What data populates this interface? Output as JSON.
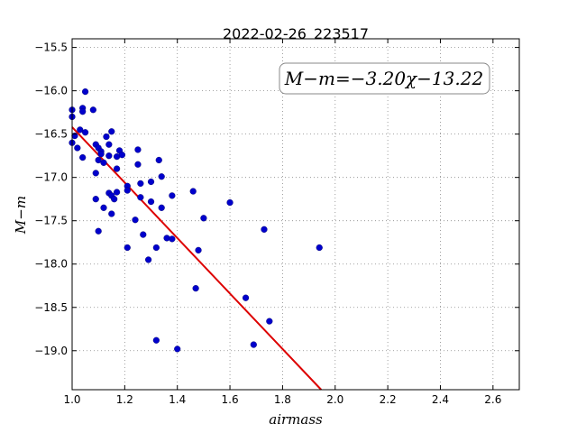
{
  "chart_data": {
    "type": "scatter",
    "title": "2022-02-26_223517",
    "xlabel": "airmass",
    "ylabel": "M−m",
    "xlim": [
      1.0,
      2.7
    ],
    "ylim": [
      -19.45,
      -15.4
    ],
    "x_ticks": [
      1.0,
      1.2,
      1.4,
      1.6,
      1.8,
      2.0,
      2.2,
      2.4,
      2.6
    ],
    "x_tick_labels": [
      "1.0",
      "1.2",
      "1.4",
      "1.6",
      "1.8",
      "2.0",
      "2.2",
      "2.4",
      "2.6"
    ],
    "y_ticks": [
      -15.5,
      -16.0,
      -16.5,
      -17.0,
      -17.5,
      -18.0,
      -18.5,
      -19.0
    ],
    "y_tick_labels": [
      "−15.5",
      "−16.0",
      "−16.5",
      "−17.0",
      "−17.5",
      "−18.0",
      "−18.5",
      "−19.0"
    ],
    "grid": true,
    "annotation": "M−m=−3.20χ−13.22",
    "colors": {
      "points": "#0000cc",
      "fit": "#dd0000",
      "grid": "#888888"
    },
    "fit_line": {
      "slope": -3.2,
      "intercept": -13.22
    },
    "points": [
      {
        "x": 1.0,
        "y": -16.22
      },
      {
        "x": 1.0,
        "y": -16.3
      },
      {
        "x": 1.01,
        "y": -16.52
      },
      {
        "x": 1.0,
        "y": -16.6
      },
      {
        "x": 1.02,
        "y": -16.66
      },
      {
        "x": 1.03,
        "y": -16.45
      },
      {
        "x": 1.04,
        "y": -16.2
      },
      {
        "x": 1.04,
        "y": -16.24
      },
      {
        "x": 1.05,
        "y": -16.01
      },
      {
        "x": 1.05,
        "y": -16.48
      },
      {
        "x": 1.04,
        "y": -16.77
      },
      {
        "x": 1.08,
        "y": -16.22
      },
      {
        "x": 1.09,
        "y": -16.62
      },
      {
        "x": 1.1,
        "y": -16.66
      },
      {
        "x": 1.11,
        "y": -16.7
      },
      {
        "x": 1.1,
        "y": -16.8
      },
      {
        "x": 1.11,
        "y": -16.73
      },
      {
        "x": 1.12,
        "y": -16.83
      },
      {
        "x": 1.13,
        "y": -16.53
      },
      {
        "x": 1.14,
        "y": -16.62
      },
      {
        "x": 1.15,
        "y": -16.47
      },
      {
        "x": 1.14,
        "y": -16.75
      },
      {
        "x": 1.09,
        "y": -16.95
      },
      {
        "x": 1.09,
        "y": -17.25
      },
      {
        "x": 1.1,
        "y": -17.62
      },
      {
        "x": 1.12,
        "y": -17.35
      },
      {
        "x": 1.14,
        "y": -17.18
      },
      {
        "x": 1.15,
        "y": -17.21
      },
      {
        "x": 1.15,
        "y": -17.42
      },
      {
        "x": 1.16,
        "y": -17.25
      },
      {
        "x": 1.17,
        "y": -16.9
      },
      {
        "x": 1.17,
        "y": -16.76
      },
      {
        "x": 1.17,
        "y": -17.17
      },
      {
        "x": 1.18,
        "y": -16.69
      },
      {
        "x": 1.19,
        "y": -16.74
      },
      {
        "x": 1.21,
        "y": -17.1
      },
      {
        "x": 1.21,
        "y": -17.15
      },
      {
        "x": 1.21,
        "y": -17.81
      },
      {
        "x": 1.24,
        "y": -17.49
      },
      {
        "x": 1.25,
        "y": -16.68
      },
      {
        "x": 1.25,
        "y": -16.85
      },
      {
        "x": 1.26,
        "y": -17.07
      },
      {
        "x": 1.26,
        "y": -17.23
      },
      {
        "x": 1.27,
        "y": -17.66
      },
      {
        "x": 1.29,
        "y": -17.95
      },
      {
        "x": 1.3,
        "y": -17.05
      },
      {
        "x": 1.3,
        "y": -17.28
      },
      {
        "x": 1.32,
        "y": -17.81
      },
      {
        "x": 1.32,
        "y": -18.88
      },
      {
        "x": 1.33,
        "y": -16.8
      },
      {
        "x": 1.34,
        "y": -16.99
      },
      {
        "x": 1.34,
        "y": -17.35
      },
      {
        "x": 1.36,
        "y": -17.7
      },
      {
        "x": 1.38,
        "y": -17.71
      },
      {
        "x": 1.38,
        "y": -17.21
      },
      {
        "x": 1.4,
        "y": -18.98
      },
      {
        "x": 1.46,
        "y": -17.16
      },
      {
        "x": 1.47,
        "y": -18.28
      },
      {
        "x": 1.48,
        "y": -17.84
      },
      {
        "x": 1.5,
        "y": -17.47
      },
      {
        "x": 1.6,
        "y": -17.29
      },
      {
        "x": 1.66,
        "y": -18.39
      },
      {
        "x": 1.69,
        "y": -18.93
      },
      {
        "x": 1.73,
        "y": -17.6
      },
      {
        "x": 1.75,
        "y": -18.66
      },
      {
        "x": 1.94,
        "y": -17.81
      }
    ]
  }
}
